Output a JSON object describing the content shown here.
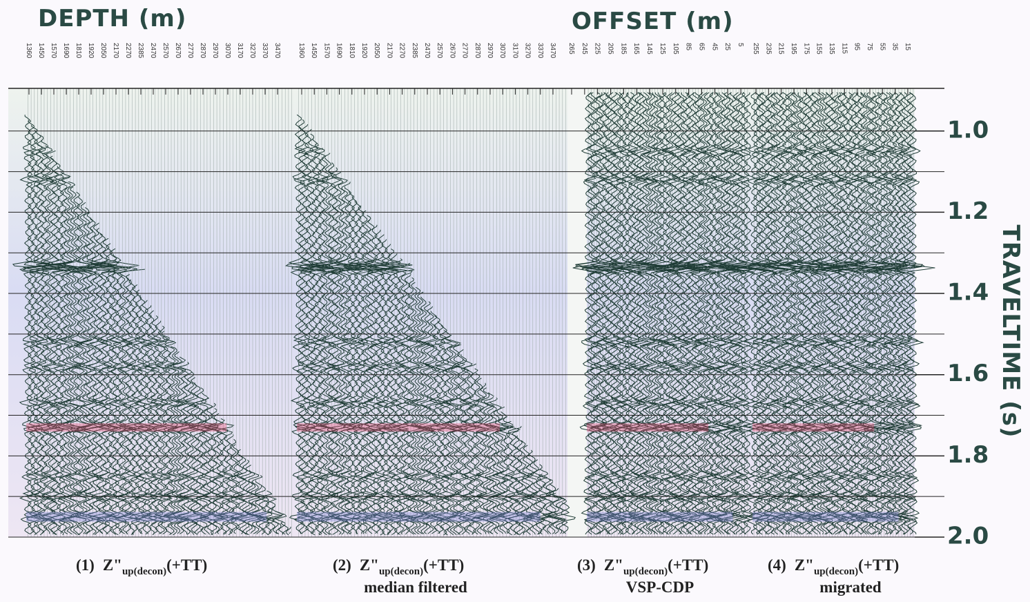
{
  "chart_data": {
    "type": "wiggle",
    "depth_label": "DEPTH (m)",
    "offset_label": "OFFSET (m)",
    "y_label": "TRAVELTIME (s)",
    "ylim": [
      0.895,
      2.0
    ],
    "yticks": [
      {
        "value": 1,
        "label": "1.0"
      },
      {
        "value": 1.2,
        "label": "1.2"
      },
      {
        "value": 1.4,
        "label": "1.4"
      },
      {
        "value": 1.6,
        "label": "1.6"
      },
      {
        "value": 1.8,
        "label": "1.8"
      },
      {
        "value": 2,
        "label": "2.0"
      }
    ],
    "minor_yticks": [
      1.1,
      1.3,
      1.5,
      1.7,
      1.9
    ],
    "grid": true,
    "panels": [
      {
        "number": "(1)",
        "symbol": "Z\"",
        "subscript": "up(decon)",
        "suffix": "(+TT)",
        "trace_labels": [
          1360,
          1450,
          1570,
          1690,
          1810,
          1920,
          2050,
          2170,
          2270,
          2385,
          2470,
          2570,
          2670,
          2770,
          2870,
          2970,
          3070,
          3170,
          3270,
          3370,
          3470
        ]
      },
      {
        "number": "(2)",
        "symbol": "Z\"",
        "subscript": "up(decon)",
        "suffix": "(+TT)",
        "note": "median filtered",
        "trace_labels": [
          1360,
          1450,
          1570,
          1690,
          1810,
          1920,
          2050,
          2170,
          2270,
          2385,
          2470,
          2570,
          2670,
          2770,
          2870,
          2970,
          3070,
          3170,
          3270,
          3370,
          3470
        ]
      },
      {
        "number": "(3)",
        "symbol": "Z\"",
        "subscript": "up(decon)",
        "suffix": "(+TT)",
        "note": "VSP-CDP",
        "trace_labels": [
          265,
          245,
          225,
          205,
          185,
          165,
          145,
          125,
          105,
          85,
          65,
          45,
          25,
          5
        ]
      },
      {
        "number": "(4)",
        "symbol": "Z\"",
        "subscript": "up(decon)",
        "suffix": "(+TT)",
        "note": "migrated",
        "trace_labels": [
          255,
          235,
          215,
          195,
          175,
          155,
          135,
          115,
          95,
          75,
          55,
          35,
          15
        ]
      }
    ]
  }
}
